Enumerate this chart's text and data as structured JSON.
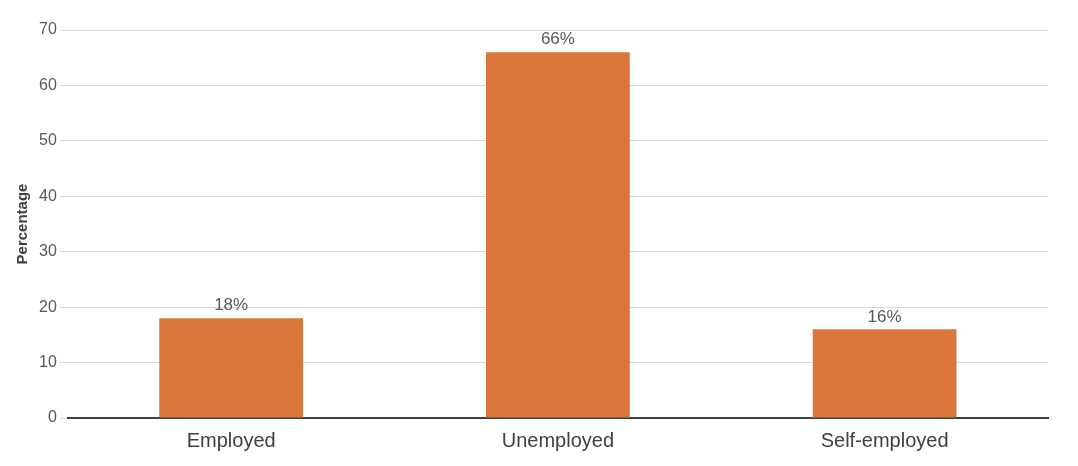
{
  "chart_data": {
    "type": "bar",
    "ylabel": "Percentage",
    "categories": [
      "Employed",
      "Unemployed",
      "Self-employed"
    ],
    "values": [
      18,
      66,
      16
    ],
    "color": "#d9773a",
    "value_labels": [
      "18%",
      "66%",
      "16%"
    ],
    "ylim": [
      0,
      70
    ],
    "yticks": [
      0,
      10,
      20,
      30,
      40,
      50,
      60,
      70
    ],
    "grid": "y",
    "legend": false
  }
}
